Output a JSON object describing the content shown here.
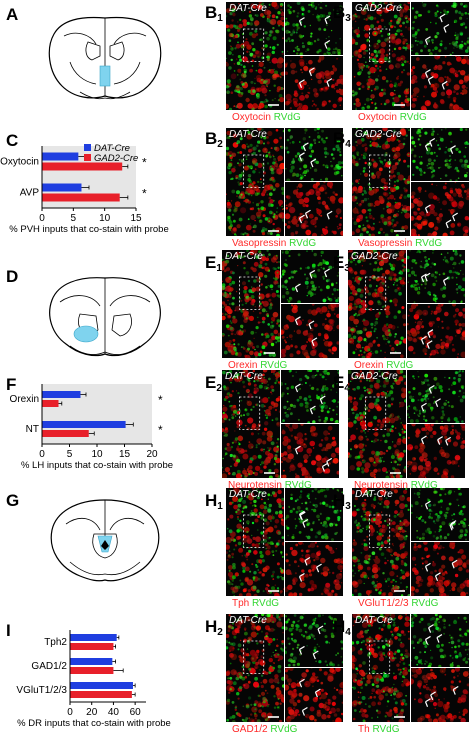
{
  "panels": {
    "A": "A",
    "C": "C",
    "D": "D",
    "F": "F",
    "G": "G",
    "I": "I",
    "B1": {
      "letter": "B",
      "num": "1",
      "genotype": "DAT-Cre",
      "probe": "Oxytocin",
      "tracer": "RVdG"
    },
    "B3": {
      "letter": "B",
      "num": "3",
      "genotype": "GAD2-Cre",
      "probe": "Oxytocin",
      "tracer": "RVdG"
    },
    "B2": {
      "letter": "B",
      "num": "2",
      "genotype": "DAT-Cre",
      "probe": "Vasopressin",
      "tracer": "RVdG"
    },
    "B4": {
      "letter": "B",
      "num": "4",
      "genotype": "GAD2-Cre",
      "probe": "Vasopressin",
      "tracer": "RVdG"
    },
    "E1": {
      "letter": "E",
      "num": "1",
      "genotype": "DAT-Cre",
      "probe": "Orexin",
      "tracer": "RVdG"
    },
    "E3": {
      "letter": "E",
      "num": "3",
      "genotype": "GAD2-Cre",
      "probe": "Orexin",
      "tracer": "RVdG"
    },
    "E2": {
      "letter": "E",
      "num": "2",
      "genotype": "DAT-Cre",
      "probe": "Neurotensin",
      "tracer": "RVdG"
    },
    "E4": {
      "letter": "E",
      "num": "4",
      "genotype": "GAD2-Cre",
      "probe": "Neurotensin",
      "tracer": "RVdG"
    },
    "H1": {
      "letter": "H",
      "num": "1",
      "genotype": "DAT-Cre",
      "probe": "Tph",
      "tracer": "RVdG"
    },
    "H3": {
      "letter": "H",
      "num": "3",
      "genotype": "DAT-Cre",
      "probe": "VGluT1/2/3",
      "tracer": "RVdG"
    },
    "H2": {
      "letter": "H",
      "num": "2",
      "genotype": "DAT-Cre",
      "probe": "GAD1/2",
      "tracer": "RVdG"
    },
    "H4": {
      "letter": "H",
      "num": "4",
      "genotype": "DAT-Cre",
      "probe": "Th",
      "tracer": "RVdG"
    }
  },
  "colors": {
    "dat": "#1f3ee0",
    "gad2": "#e8202a",
    "shade": "#e6e6e6",
    "inject": "#7fd3ee"
  },
  "chart_data": [
    {
      "panel": "C",
      "type": "bar",
      "orientation": "horizontal",
      "categories": [
        "Oxytocin",
        "AVP"
      ],
      "series": [
        {
          "name": "DAT-Cre",
          "values": [
            5.8,
            6.3
          ],
          "errors": [
            1.0,
            1.2
          ]
        },
        {
          "name": "GAD2-Cre",
          "values": [
            12.8,
            12.4
          ],
          "errors": [
            0.9,
            1.3
          ]
        }
      ],
      "significance": [
        "*",
        "*"
      ],
      "xlabel": "% PVH inputs that co-stain with probe",
      "xticks": [
        "0",
        "5",
        "10",
        "15"
      ],
      "xlim": [
        0,
        15
      ],
      "legend": "top-left"
    },
    {
      "panel": "F",
      "type": "bar",
      "orientation": "horizontal",
      "categories": [
        "Orexin",
        "NT"
      ],
      "series": [
        {
          "name": "DAT-Cre",
          "values": [
            7.0,
            15.2
          ],
          "errors": [
            1.0,
            1.4
          ]
        },
        {
          "name": "GAD2-Cre",
          "values": [
            3.0,
            8.5
          ],
          "errors": [
            0.6,
            1.0
          ]
        }
      ],
      "significance": [
        "*",
        "*"
      ],
      "xlabel": "% LH inputs that co-stain with probe",
      "xticks": [
        "0",
        "5",
        "10",
        "15",
        "20"
      ],
      "xlim": [
        0,
        20
      ]
    },
    {
      "panel": "I",
      "type": "bar",
      "orientation": "horizontal",
      "categories": [
        "Tph2",
        "GAD1/2",
        "VGluT1/2/3"
      ],
      "series": [
        {
          "name": "DAT-Cre",
          "values": [
            43,
            39,
            58
          ],
          "errors": [
            2,
            3,
            2
          ]
        },
        {
          "name": "GAD2-Cre",
          "values": [
            40,
            40,
            57
          ],
          "errors": [
            2,
            9,
            3
          ]
        }
      ],
      "xlabel": "% DR inputs that co-stain with probe",
      "xticks": [
        "0",
        "20",
        "40",
        "60"
      ],
      "xlim": [
        0,
        70
      ]
    }
  ]
}
